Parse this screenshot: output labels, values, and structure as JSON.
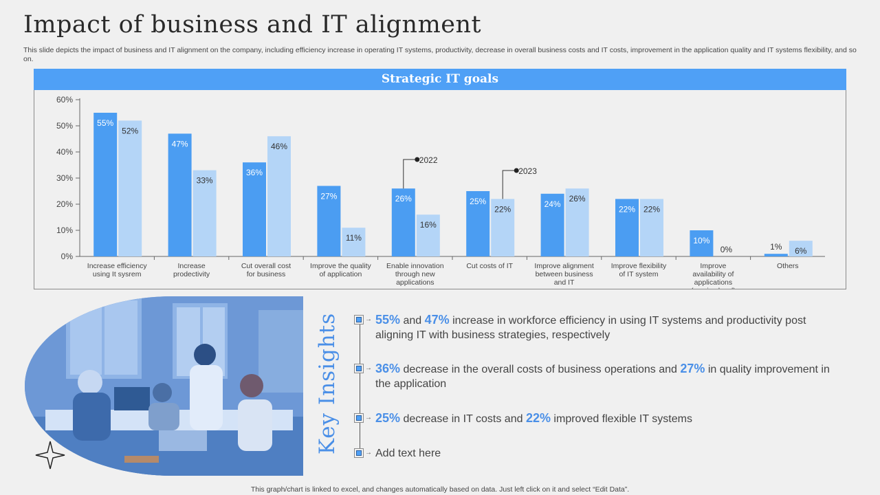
{
  "title": "Impact of business and IT alignment",
  "subtitle": "This slide depicts the impact of business and IT alignment on the company, including efficiency increase in operating IT systems, productivity, decrease in overall business costs and IT costs, improvement in the application quality and IT systems flexibility, and so on.",
  "colors": {
    "accent": "#4fa0f6",
    "series_2022": "#4b9df2",
    "series_2023": "#b4d5f7",
    "highlight": "#4a8fe7"
  },
  "chart_data": {
    "type": "bar",
    "title": "Strategic IT goals",
    "categories": [
      "Increase efficiency using It sysrem",
      "Increase prodectivity",
      "Cut overall cost for business",
      "Improve the quality of application",
      "Enable innovation through new applications",
      "Cut costs of IT",
      "Improve alignment between business and IT",
      "Improve flexibility of IT system",
      "Improve availability of applications (service level)",
      "Others"
    ],
    "series": [
      {
        "name": "2022",
        "values": [
          55,
          47,
          36,
          27,
          26,
          25,
          24,
          22,
          10,
          1
        ]
      },
      {
        "name": "2023",
        "values": [
          52,
          33,
          46,
          11,
          16,
          22,
          26,
          22,
          0,
          6
        ]
      }
    ],
    "yticks": [
      "0%",
      "10%",
      "20%",
      "30%",
      "40%",
      "50%",
      "60%"
    ],
    "ylim": [
      0,
      60
    ],
    "value_suffix": "%",
    "legend": "callouts"
  },
  "insights_title": "Key Insights",
  "insights": [
    {
      "v1": "55%",
      "t1": " and ",
      "v2": "47%",
      "t2": "  increase in workforce efficiency in using IT  systems and productivity post aligning IT with business strategies, respectively"
    },
    {
      "v1": "36%",
      "t1": " decrease in the overall costs of business operations and ",
      "v2": "27%",
      "t2": " in quality improvement  in the application"
    },
    {
      "v1": "25%",
      "t1": " decrease in IT  costs and ",
      "v2": "22%",
      "t2": " improved flexible IT systems"
    },
    {
      "v1": "",
      "t1": "Add text here",
      "v2": "",
      "t2": ""
    }
  ],
  "footer": "This graph/chart is linked to excel,  and changes automatically based on data. Just left click on it and select “Edit Data”."
}
